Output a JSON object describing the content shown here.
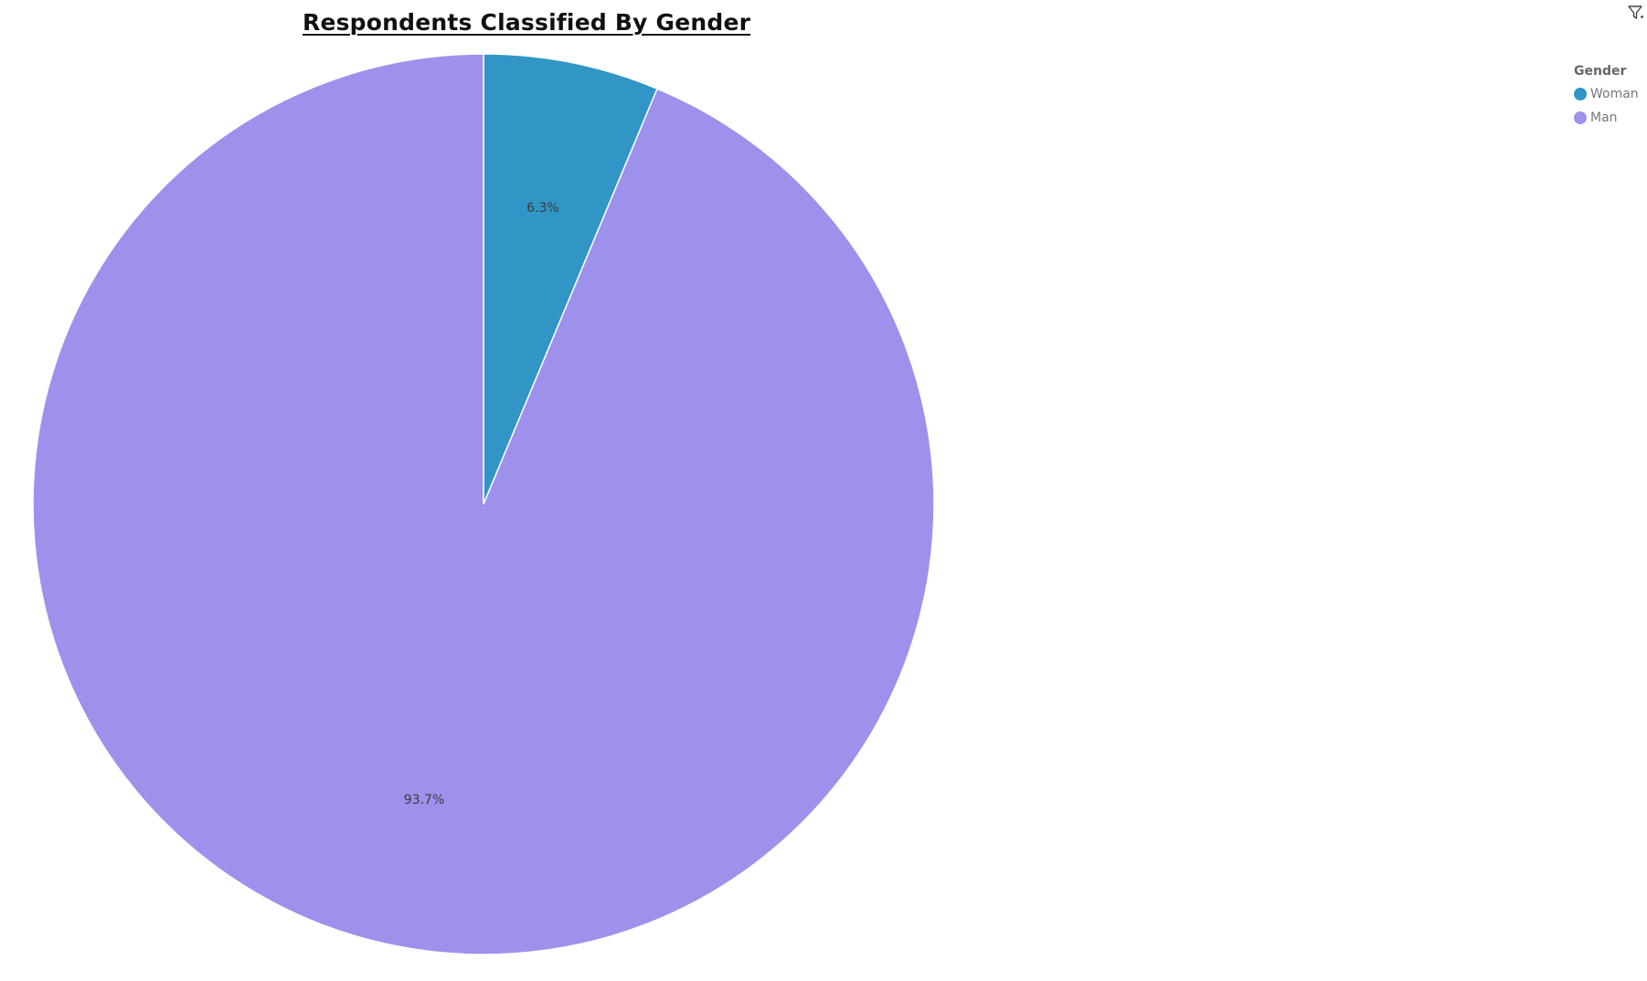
{
  "chart_data": {
    "type": "pie",
    "title": "Respondents Classified By Gender",
    "legend_title": "Gender",
    "legend_position": "top-right",
    "slices": [
      {
        "label": "Woman",
        "value": 6.3,
        "display": "6.3%",
        "color": "#3196C6"
      },
      {
        "label": "Man",
        "value": 93.7,
        "display": "93.7%",
        "color": "#9E91EC"
      }
    ]
  },
  "toolbar": {
    "filter_icon": "filter-icon"
  }
}
